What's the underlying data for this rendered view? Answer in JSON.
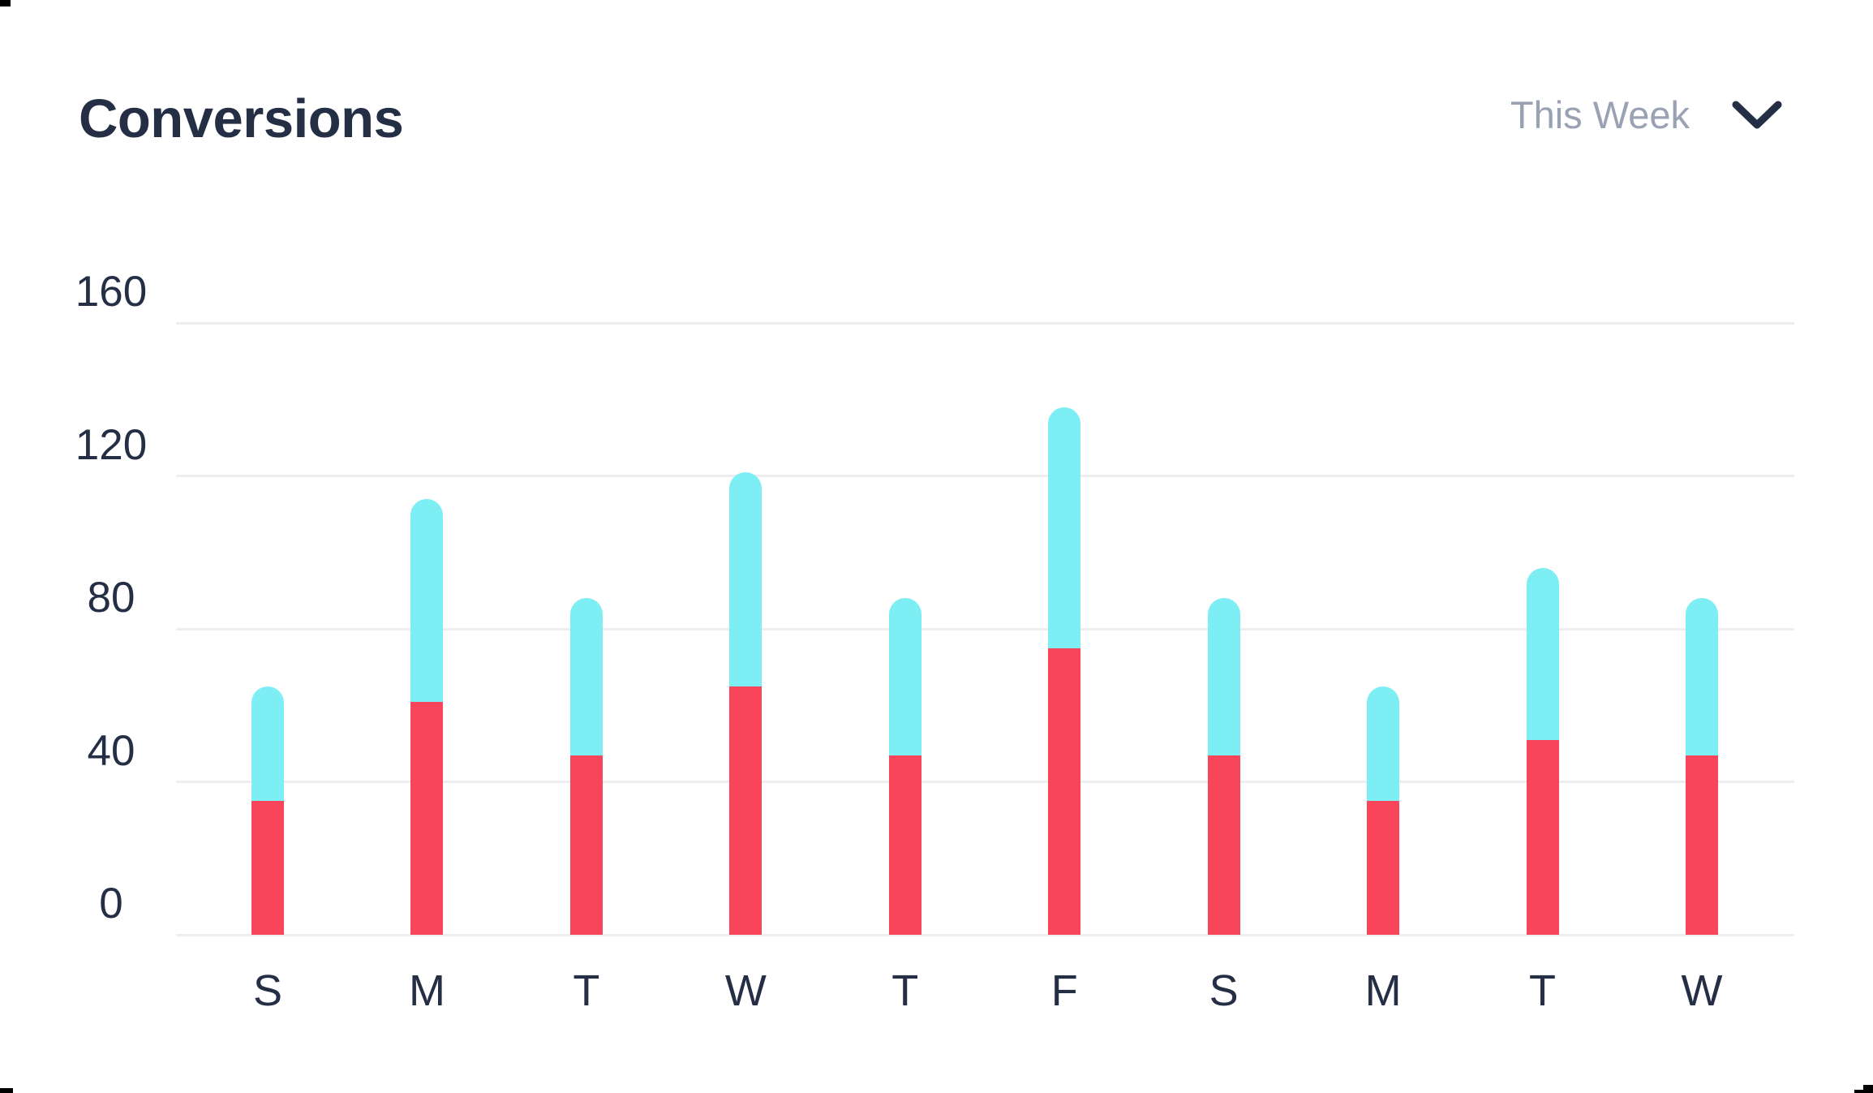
{
  "header": {
    "title": "Conversions",
    "period_selector": {
      "label": "This Week",
      "icon": "chevron-down"
    }
  },
  "colors": {
    "series_primary": "#f8455a",
    "series_secondary": "#7deef4",
    "grid": "#eceef1",
    "text_dark": "#242e45",
    "text_muted": "#99a1b3",
    "background": "#ffffff"
  },
  "chart_data": {
    "type": "bar",
    "stacked": true,
    "title": "Conversions",
    "categories": [
      "S",
      "M",
      "T",
      "W",
      "T",
      "F",
      "S",
      "M",
      "T",
      "W"
    ],
    "series": [
      {
        "name": "primary-red",
        "color": "#f8455a",
        "values": [
          35,
          61,
          47,
          65,
          47,
          75,
          47,
          35,
          51,
          47
        ]
      },
      {
        "name": "secondary-cyan",
        "color": "#7deef4",
        "values": [
          30,
          53,
          41,
          56,
          41,
          63,
          41,
          30,
          45,
          41
        ]
      }
    ],
    "stack_totals": [
      65,
      114,
      88,
      121,
      88,
      138,
      88,
      65,
      96,
      88
    ],
    "y_ticks": [
      0,
      40,
      80,
      120,
      160
    ],
    "ylim": [
      0,
      160
    ],
    "xlabel": "",
    "ylabel": "",
    "grid": true,
    "legend": false,
    "bar_cap": "rounded-top"
  }
}
